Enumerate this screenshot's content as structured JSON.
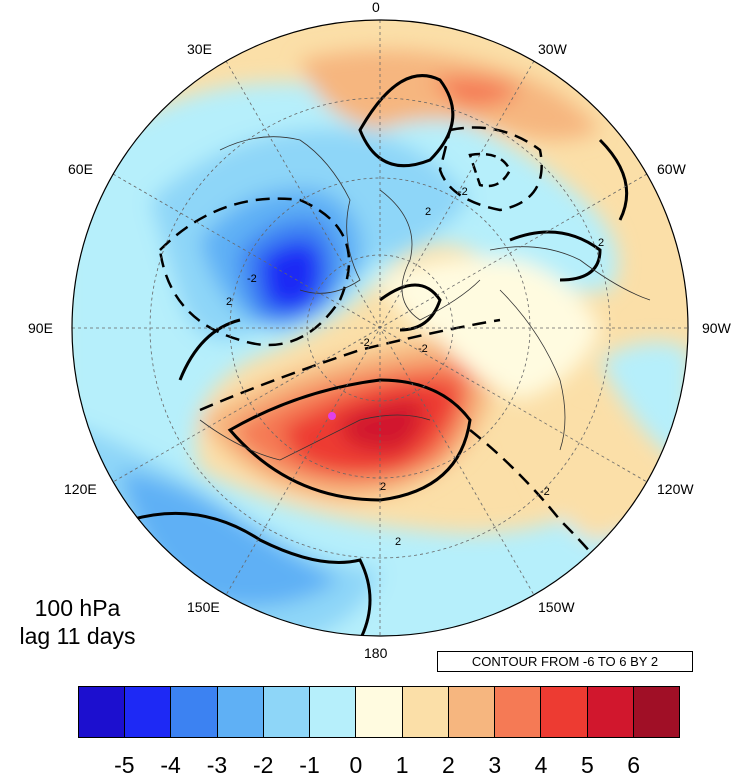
{
  "title": {
    "level": "100 hPa",
    "lag": "lag 11 days"
  },
  "contour_note": "CONTOUR FROM -6 TO 6 BY 2",
  "projection": "polar stereographic, north pole",
  "longitude_labels": [
    {
      "key": "0",
      "text": "0"
    },
    {
      "key": "30W",
      "text": "30W"
    },
    {
      "key": "60W",
      "text": "60W"
    },
    {
      "key": "90W",
      "text": "90W"
    },
    {
      "key": "120W",
      "text": "120W"
    },
    {
      "key": "150W",
      "text": "150W"
    },
    {
      "key": "180",
      "text": "180"
    },
    {
      "key": "150E",
      "text": "150E"
    },
    {
      "key": "120E",
      "text": "120E"
    },
    {
      "key": "90E",
      "text": "90E"
    },
    {
      "key": "60E",
      "text": "60E"
    },
    {
      "key": "30E",
      "text": "30E"
    }
  ],
  "colorbar": {
    "colors": [
      "#1c0fcf",
      "#1e29f5",
      "#3c82f2",
      "#5fb0f5",
      "#8ed6f8",
      "#b6effb",
      "#fffbe0",
      "#fbdfa8",
      "#f6b67f",
      "#f57a55",
      "#ed3b32",
      "#d1172d",
      "#a00f26"
    ],
    "labels": [
      "-5",
      "-4",
      "-3",
      "-2",
      "-1",
      "0",
      "1",
      "2",
      "3",
      "4",
      "5",
      "6"
    ]
  },
  "contour_labels": [
    "2",
    "-2",
    "2",
    "-2",
    "2",
    "-2",
    "-2",
    "2",
    "2",
    "-2"
  ],
  "marker": {
    "name": "reference point",
    "color": "#e040e8"
  }
}
